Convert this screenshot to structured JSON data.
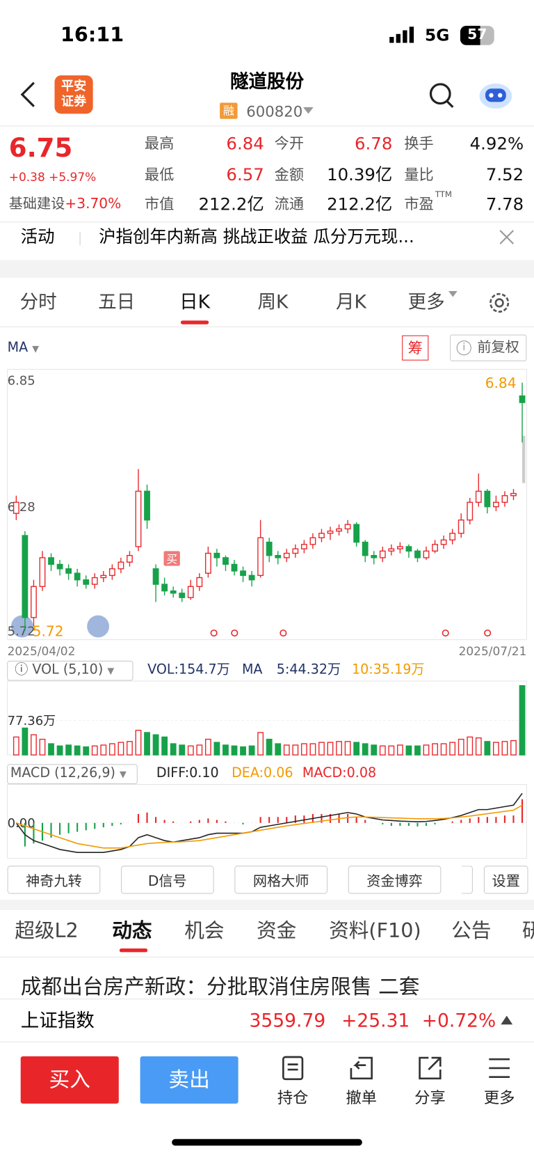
{
  "status": {
    "time": "16:11",
    "network": "5G",
    "battery": "57"
  },
  "header": {
    "logo": [
      "平安",
      "证券"
    ],
    "title": "隧道股份",
    "badge": "融",
    "code": "600820"
  },
  "quote": {
    "price": "6.75",
    "change": "+0.38",
    "pct": "+5.97%",
    "sector": "基础建设",
    "sector_pct": "+3.70%",
    "stats": [
      {
        "label": "最高",
        "value": "6.84",
        "color": "red"
      },
      {
        "label": "今开",
        "value": "6.78",
        "color": "red"
      },
      {
        "label": "换手",
        "value": "4.92%",
        "color": "black"
      },
      {
        "label": "最低",
        "value": "6.57",
        "color": "red"
      },
      {
        "label": "金额",
        "value": "10.39亿",
        "color": "black"
      },
      {
        "label": "量比",
        "value": "7.52",
        "color": "black"
      },
      {
        "label": "市值",
        "value": "212.2亿",
        "color": "black"
      },
      {
        "label": "流通",
        "value": "212.2亿",
        "color": "black"
      },
      {
        "label": "市盈",
        "sup": "TTM",
        "value": "7.78",
        "color": "black"
      }
    ]
  },
  "banner": {
    "tag": "活动",
    "text": "沪指创年内新高 挑战正收益 瓜分万元现..."
  },
  "tabs": [
    "分时",
    "五日",
    "日K",
    "周K",
    "月K",
    "更多"
  ],
  "toolbar": {
    "indicator": "MA",
    "chip": "筹",
    "adjust": "前复权"
  },
  "chart_data": {
    "type": "candlestick",
    "ylim": [
      5.68,
      6.9
    ],
    "yticks": [
      6.85,
      6.28,
      5.72
    ],
    "categories": [
      "2025/04/02",
      null,
      null,
      null,
      null,
      null,
      null,
      null,
      null,
      null,
      null,
      null,
      null,
      null,
      null,
      null,
      null,
      null,
      null,
      null,
      null,
      null,
      null,
      null,
      null,
      null,
      null,
      null,
      null,
      null,
      null,
      null,
      null,
      null,
      null,
      null,
      null,
      null,
      null,
      null,
      null,
      null,
      null,
      null,
      null,
      null,
      null,
      null,
      null,
      null,
      null,
      null,
      null,
      null,
      null,
      null,
      null,
      null,
      "2025/07/21"
    ],
    "annotations": [
      {
        "text": "6.84"
      },
      {
        "text": "5.72"
      }
    ],
    "buy_marker": "买",
    "ohlc": [
      [
        6.25,
        6.33,
        6.22,
        6.3
      ],
      [
        6.15,
        6.17,
        5.72,
        5.78
      ],
      [
        5.78,
        5.95,
        5.74,
        5.92
      ],
      [
        5.92,
        6.08,
        5.9,
        6.05
      ],
      [
        6.05,
        6.07,
        5.99,
        6.02
      ],
      [
        6.02,
        6.04,
        5.97,
        6.0
      ],
      [
        6.0,
        6.02,
        5.95,
        5.98
      ],
      [
        5.98,
        6.0,
        5.92,
        5.95
      ],
      [
        5.95,
        5.97,
        5.91,
        5.93
      ],
      [
        5.93,
        5.98,
        5.91,
        5.96
      ],
      [
        5.96,
        5.99,
        5.94,
        5.97
      ],
      [
        5.97,
        6.02,
        5.95,
        6.0
      ],
      [
        6.0,
        6.05,
        5.98,
        6.03
      ],
      [
        6.03,
        6.08,
        6.01,
        6.06
      ],
      [
        6.1,
        6.45,
        6.08,
        6.35
      ],
      [
        6.35,
        6.38,
        6.18,
        6.22
      ],
      [
        6.0,
        6.02,
        5.85,
        5.93
      ],
      [
        5.93,
        5.96,
        5.88,
        5.9
      ],
      [
        5.9,
        5.92,
        5.87,
        5.89
      ],
      [
        5.89,
        5.91,
        5.85,
        5.87
      ],
      [
        5.87,
        5.95,
        5.86,
        5.92
      ],
      [
        5.92,
        5.98,
        5.9,
        5.96
      ],
      [
        5.98,
        6.1,
        5.96,
        6.07
      ],
      [
        6.07,
        6.09,
        6.01,
        6.05
      ],
      [
        6.05,
        6.06,
        5.99,
        6.02
      ],
      [
        6.02,
        6.04,
        5.97,
        5.99
      ],
      [
        5.99,
        6.01,
        5.94,
        5.97
      ],
      [
        5.97,
        5.99,
        5.92,
        5.95
      ],
      [
        5.97,
        6.22,
        5.96,
        6.14
      ],
      [
        6.12,
        6.14,
        6.03,
        6.06
      ],
      [
        6.06,
        6.08,
        6.02,
        6.05
      ],
      [
        6.05,
        6.09,
        6.03,
        6.07
      ],
      [
        6.07,
        6.11,
        6.05,
        6.09
      ],
      [
        6.09,
        6.13,
        6.07,
        6.11
      ],
      [
        6.11,
        6.16,
        6.09,
        6.14
      ],
      [
        6.14,
        6.18,
        6.12,
        6.16
      ],
      [
        6.16,
        6.19,
        6.13,
        6.17
      ],
      [
        6.17,
        6.2,
        6.15,
        6.18
      ],
      [
        6.18,
        6.22,
        6.16,
        6.2
      ],
      [
        6.2,
        6.21,
        6.1,
        6.12
      ],
      [
        6.12,
        6.13,
        6.03,
        6.06
      ],
      [
        6.06,
        6.08,
        6.02,
        6.05
      ],
      [
        6.05,
        6.1,
        6.03,
        6.08
      ],
      [
        6.08,
        6.11,
        6.06,
        6.09
      ],
      [
        6.09,
        6.12,
        6.07,
        6.1
      ],
      [
        6.1,
        6.11,
        6.05,
        6.08
      ],
      [
        6.08,
        6.09,
        6.03,
        6.05
      ],
      [
        6.05,
        6.1,
        6.04,
        6.08
      ],
      [
        6.08,
        6.13,
        6.07,
        6.11
      ],
      [
        6.11,
        6.15,
        6.09,
        6.13
      ],
      [
        6.13,
        6.18,
        6.11,
        6.16
      ],
      [
        6.16,
        6.25,
        6.14,
        6.22
      ],
      [
        6.22,
        6.32,
        6.2,
        6.3
      ],
      [
        6.3,
        6.43,
        6.28,
        6.35
      ],
      [
        6.35,
        6.36,
        6.25,
        6.28
      ],
      [
        6.28,
        6.33,
        6.26,
        6.3
      ],
      [
        6.3,
        6.35,
        6.28,
        6.33
      ],
      [
        6.33,
        6.36,
        6.31,
        6.34
      ],
      [
        6.78,
        6.84,
        6.57,
        6.75
      ]
    ],
    "up_color": "#e8262a",
    "down_color": "#17a24a",
    "volume": {
      "header": "VOL (5,10)",
      "vol": "VOL:154.7万",
      "ma": "MA",
      "ma5": "5:44.32万",
      "ma10": "10:35.19万",
      "ylim": [
        0,
        165
      ],
      "yticks": [
        {
          "value": 77.36,
          "label": "77.36万"
        }
      ],
      "values": [
        40,
        60,
        45,
        35,
        25,
        20,
        22,
        20,
        18,
        20,
        22,
        25,
        28,
        30,
        55,
        50,
        45,
        40,
        25,
        22,
        20,
        22,
        35,
        28,
        22,
        20,
        18,
        20,
        50,
        35,
        25,
        22,
        22,
        25,
        25,
        28,
        28,
        30,
        30,
        28,
        25,
        22,
        20,
        20,
        22,
        20,
        20,
        22,
        25,
        25,
        28,
        35,
        40,
        38,
        30,
        28,
        30,
        32,
        154.7
      ]
    },
    "macd": {
      "header": "MACD (12,26,9)",
      "diff_label": "DIFF:0.10",
      "dea_label": "DEA:0.06",
      "macd_label": "MACD:0.08",
      "ylim": [
        -0.12,
        0.13
      ],
      "yticks": [
        {
          "value": 0,
          "label": "0.00"
        }
      ],
      "hist": [
        0.0,
        -0.08,
        -0.07,
        -0.06,
        -0.05,
        -0.04,
        -0.035,
        -0.03,
        -0.025,
        -0.02,
        -0.015,
        -0.01,
        -0.005,
        0.0,
        0.03,
        0.035,
        0.02,
        0.01,
        0.005,
        0.0,
        0.005,
        0.01,
        0.015,
        0.01,
        0.005,
        0.0,
        -0.005,
        0.0,
        0.02,
        0.02,
        0.02,
        0.02,
        0.025,
        0.025,
        0.03,
        0.03,
        0.03,
        0.03,
        0.03,
        0.02,
        0.01,
        0.0,
        -0.005,
        -0.01,
        -0.01,
        -0.01,
        -0.012,
        -0.01,
        -0.005,
        0.0,
        0.005,
        0.01,
        0.015,
        0.02,
        0.02,
        0.02,
        0.025,
        0.025,
        0.08
      ],
      "diff": [
        0.0,
        -0.04,
        -0.06,
        -0.07,
        -0.08,
        -0.09,
        -0.095,
        -0.1,
        -0.1,
        -0.1,
        -0.1,
        -0.095,
        -0.09,
        -0.08,
        -0.05,
        -0.04,
        -0.05,
        -0.06,
        -0.065,
        -0.06,
        -0.055,
        -0.05,
        -0.04,
        -0.035,
        -0.035,
        -0.035,
        -0.035,
        -0.03,
        -0.015,
        -0.01,
        -0.005,
        0.0,
        0.005,
        0.01,
        0.015,
        0.02,
        0.025,
        0.03,
        0.035,
        0.03,
        0.02,
        0.015,
        0.01,
        0.008,
        0.006,
        0.005,
        0.004,
        0.005,
        0.008,
        0.012,
        0.018,
        0.025,
        0.035,
        0.045,
        0.045,
        0.05,
        0.055,
        0.06,
        0.1
      ],
      "dea": [
        0.0,
        -0.01,
        -0.02,
        -0.03,
        -0.04,
        -0.05,
        -0.06,
        -0.07,
        -0.075,
        -0.08,
        -0.085,
        -0.085,
        -0.085,
        -0.08,
        -0.075,
        -0.07,
        -0.068,
        -0.066,
        -0.065,
        -0.064,
        -0.062,
        -0.06,
        -0.055,
        -0.05,
        -0.045,
        -0.04,
        -0.035,
        -0.03,
        -0.025,
        -0.02,
        -0.015,
        -0.01,
        -0.006,
        -0.002,
        0.002,
        0.006,
        0.01,
        0.014,
        0.018,
        0.02,
        0.02,
        0.019,
        0.018,
        0.017,
        0.016,
        0.015,
        0.014,
        0.014,
        0.014,
        0.015,
        0.017,
        0.02,
        0.023,
        0.027,
        0.031,
        0.035,
        0.039,
        0.043,
        0.06
      ]
    }
  },
  "tools": [
    "神奇九转",
    "D信号",
    "网格大师",
    "资金博弈",
    "设置"
  ],
  "bottom_tabs": [
    "超级L2",
    "动态",
    "机会",
    "资金",
    "资料(F10)",
    "公告",
    "研"
  ],
  "news": "成都出台房产新政：分批取消住房限售 二套",
  "index": {
    "name": "上证指数",
    "value": "3559.79",
    "change": "+25.31",
    "pct": "+0.72%"
  },
  "actions": {
    "buy": "买入",
    "sell": "卖出",
    "items": [
      "持仓",
      "撤单",
      "分享",
      "更多"
    ]
  }
}
